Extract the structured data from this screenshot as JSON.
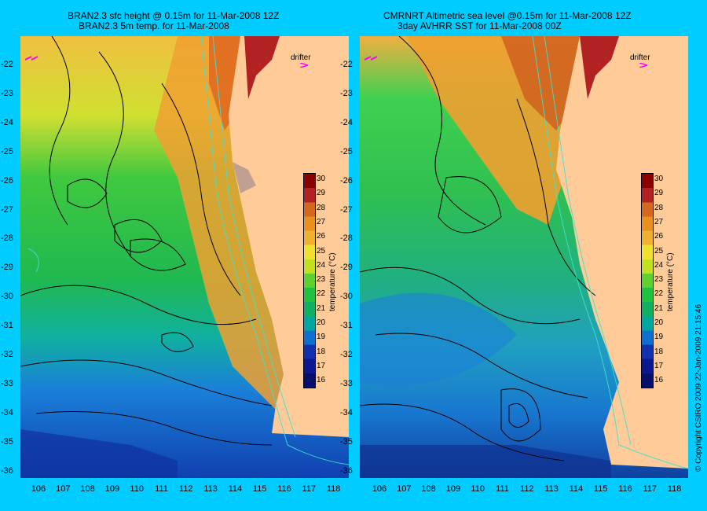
{
  "panels": [
    {
      "title_line1": "BRAN2.3 sfc height @ 0.15m for 11-Mar-2008 12Z",
      "title_line2": "BRAN2.3 5m temp. for 11-Mar-2008",
      "drifter_label": "drifter"
    },
    {
      "title_line1": "CMRNRT Altimetric sea level  @0.15m  for 11-Mar-2008 12Z",
      "title_line2": "3day AVHRR SST for 11-Mar-2008 00Z",
      "drifter_label": "drifter"
    }
  ],
  "lat_labels": [
    "-22",
    "-23",
    "-24",
    "-25",
    "-26",
    "-27",
    "-28",
    "-29",
    "-30",
    "-31",
    "-32",
    "-33",
    "-34",
    "-35",
    "-36"
  ],
  "lon_labels": [
    "106",
    "107",
    "108",
    "109",
    "110",
    "111",
    "112",
    "113",
    "114",
    "115",
    "116",
    "117",
    "118"
  ],
  "colorbar": {
    "title": "temperature (°C)",
    "labels": [
      "30",
      "29",
      "28",
      "27",
      "26",
      "25",
      "24",
      "23",
      "22",
      "21",
      "20",
      "19",
      "18",
      "17",
      "16"
    ],
    "colors": [
      "#8b0000",
      "#b22222",
      "#d2691e",
      "#e89020",
      "#f0b030",
      "#f0e030",
      "#c0e020",
      "#60d030",
      "#20c040",
      "#10b060",
      "#00a8a0",
      "#1070d0",
      "#1030b0",
      "#0c1890",
      "#06106a"
    ]
  },
  "copyright": "© Copyright CSIRO 2009   22-Jan-2009 21:15:46",
  "colors": {
    "background": "#00ccff",
    "land": "#ffcc99",
    "contour": "#000000",
    "bathymetry": "#40e0d0",
    "drifter": "#ff00ff"
  }
}
